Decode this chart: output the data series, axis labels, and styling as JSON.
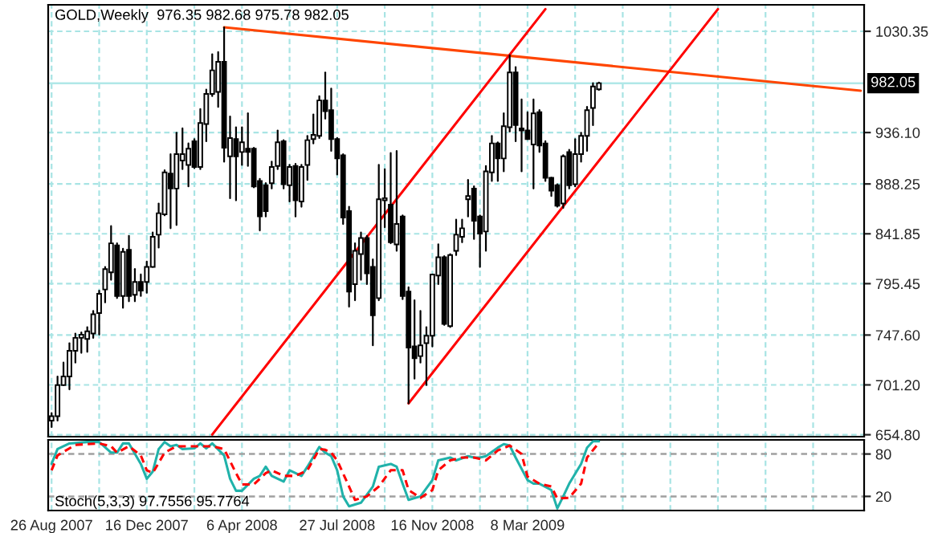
{
  "chart_data": [
    {
      "type": "candlestick",
      "title": "GOLD,Weekly  976.35 982.68 975.78 982.05",
      "x": [
        "2007-08-26",
        "2007-09-02",
        "2007-09-09",
        "2007-09-16",
        "2007-09-23",
        "2007-09-30",
        "2007-10-07",
        "2007-10-14",
        "2007-10-21",
        "2007-10-28",
        "2007-11-04",
        "2007-11-11",
        "2007-11-18",
        "2007-11-25",
        "2007-12-02",
        "2007-12-09",
        "2007-12-16",
        "2007-12-23",
        "2007-12-30",
        "2008-01-06",
        "2008-01-13",
        "2008-01-20",
        "2008-01-27",
        "2008-02-03",
        "2008-02-10",
        "2008-02-17",
        "2008-02-24",
        "2008-03-02",
        "2008-03-09",
        "2008-03-16",
        "2008-03-23",
        "2008-03-30",
        "2008-04-06",
        "2008-04-13",
        "2008-04-20",
        "2008-04-27",
        "2008-05-04",
        "2008-05-11",
        "2008-05-18",
        "2008-05-25",
        "2008-06-01",
        "2008-06-08",
        "2008-06-15",
        "2008-06-22",
        "2008-06-29",
        "2008-07-06",
        "2008-07-13",
        "2008-07-20",
        "2008-07-27",
        "2008-08-03",
        "2008-08-10",
        "2008-08-17",
        "2008-08-24",
        "2008-08-31",
        "2008-09-07",
        "2008-09-14",
        "2008-09-21",
        "2008-09-28",
        "2008-10-05",
        "2008-10-12",
        "2008-10-19",
        "2008-10-26",
        "2008-11-02",
        "2008-11-09",
        "2008-11-16",
        "2008-11-23",
        "2008-11-30",
        "2008-12-07",
        "2008-12-14",
        "2008-12-21",
        "2008-12-28",
        "2009-01-04",
        "2009-01-11",
        "2009-01-18",
        "2009-01-25",
        "2009-02-01",
        "2009-02-08",
        "2009-02-15",
        "2009-02-22",
        "2009-03-01",
        "2009-03-08",
        "2009-03-15",
        "2009-03-22",
        "2009-03-29",
        "2009-04-05",
        "2009-04-12",
        "2009-04-19",
        "2009-04-26",
        "2009-05-03",
        "2009-05-10",
        "2009-05-17",
        "2009-05-24",
        "2009-05-31"
      ],
      "ohlc": [
        [
          668,
          675,
          662,
          672
        ],
        [
          672,
          709,
          668,
          701
        ],
        [
          701,
          722,
          701,
          709
        ],
        [
          709,
          740,
          697,
          733
        ],
        [
          733,
          749,
          722,
          745
        ],
        [
          745,
          750,
          731,
          748
        ],
        [
          744,
          755,
          732,
          751
        ],
        [
          749,
          770,
          745,
          767
        ],
        [
          768,
          789,
          748,
          786
        ],
        [
          790,
          811,
          778,
          809
        ],
        [
          806,
          849,
          799,
          833
        ],
        [
          831,
          833,
          782,
          784
        ],
        [
          784,
          828,
          773,
          825
        ],
        [
          827,
          840,
          779,
          784
        ],
        [
          785,
          809,
          779,
          797
        ],
        [
          797,
          804,
          784,
          789
        ],
        [
          797,
          816,
          787,
          811
        ],
        [
          811,
          843,
          811,
          839
        ],
        [
          841,
          870,
          829,
          861
        ],
        [
          860,
          901,
          859,
          899
        ],
        [
          898,
          916,
          847,
          884
        ],
        [
          884,
          936,
          850,
          916
        ],
        [
          910,
          940,
          902,
          916
        ],
        [
          906,
          926,
          886,
          921
        ],
        [
          928,
          930,
          903,
          904
        ],
        [
          904,
          958,
          902,
          945
        ],
        [
          944,
          976,
          928,
          972
        ],
        [
          972,
          1009,
          970,
          994
        ],
        [
          974,
          1011,
          960,
          1002
        ],
        [
          1002,
          1034,
          909,
          922
        ],
        [
          914,
          951,
          875,
          931
        ],
        [
          930,
          941,
          873,
          914
        ],
        [
          918,
          941,
          906,
          927
        ],
        [
          921,
          954,
          905,
          918
        ],
        [
          921,
          922,
          885,
          886
        ],
        [
          891,
          893,
          845,
          858
        ],
        [
          887,
          889,
          858,
          863
        ],
        [
          889,
          909,
          884,
          904
        ],
        [
          905,
          938,
          902,
          927
        ],
        [
          928,
          929,
          884,
          888
        ],
        [
          887,
          906,
          872,
          904
        ],
        [
          905,
          907,
          858,
          873
        ],
        [
          872,
          906,
          867,
          904
        ],
        [
          906,
          933,
          892,
          929
        ],
        [
          930,
          953,
          926,
          934
        ],
        [
          933,
          970,
          931,
          966
        ],
        [
          966,
          992,
          949,
          956
        ],
        [
          957,
          977,
          919,
          930
        ],
        [
          930,
          931,
          897,
          912
        ],
        [
          915,
          916,
          851,
          857
        ],
        [
          863,
          867,
          774,
          788
        ],
        [
          795,
          833,
          780,
          826
        ],
        [
          823,
          843,
          799,
          838
        ],
        [
          838,
          840,
          795,
          805
        ],
        [
          811,
          818,
          738,
          766
        ],
        [
          782,
          906,
          780,
          874
        ],
        [
          873,
          902,
          848,
          875
        ],
        [
          869,
          917,
          833,
          834
        ],
        [
          832,
          919,
          826,
          851
        ],
        [
          858,
          859,
          781,
          784
        ],
        [
          788,
          792,
          684,
          736
        ],
        [
          737,
          780,
          707,
          726
        ],
        [
          728,
          770,
          722,
          738
        ],
        [
          740,
          755,
          701,
          747
        ],
        [
          747,
          804,
          737,
          804
        ],
        [
          803,
          832,
          795,
          820
        ],
        [
          820,
          821,
          757,
          758
        ],
        [
          756,
          823,
          755,
          822
        ],
        [
          826,
          855,
          822,
          841
        ],
        [
          839,
          855,
          834,
          847
        ],
        [
          874,
          892,
          858,
          877
        ],
        [
          884,
          886,
          837,
          854
        ],
        [
          858,
          859,
          811,
          842
        ],
        [
          844,
          905,
          826,
          900
        ],
        [
          899,
          933,
          891,
          926
        ],
        [
          926,
          927,
          891,
          912
        ],
        [
          912,
          954,
          900,
          942
        ],
        [
          941,
          1008,
          937,
          992
        ],
        [
          992,
          997,
          928,
          943
        ],
        [
          940,
          967,
          900,
          938
        ],
        [
          938,
          955,
          930,
          930
        ],
        [
          925,
          967,
          884,
          954
        ],
        [
          955,
          957,
          918,
          924
        ],
        [
          926,
          928,
          891,
          894
        ],
        [
          894,
          894,
          877,
          882
        ],
        [
          887,
          888,
          867,
          868
        ],
        [
          870,
          915,
          866,
          914
        ],
        [
          918,
          920,
          884,
          887
        ],
        [
          888,
          930,
          886,
          916
        ],
        [
          916,
          936,
          909,
          933
        ],
        [
          933,
          960,
          919,
          957
        ],
        [
          959,
          982,
          943,
          979
        ],
        [
          976.35,
          982.68,
          975.78,
          982.05
        ]
      ],
      "series": [
        {
          "type": "line",
          "color": "#ff4500",
          "x": [
            "2008-03-16",
            "2010-04-04"
          ],
          "values": [
            1034,
            975
          ]
        },
        {
          "type": "line",
          "color": "#ff0000",
          "x": [
            "2008-03-02",
            "2009-03-29"
          ],
          "values": [
            655,
            1051
          ]
        },
        {
          "type": "line",
          "color": "#ff0000",
          "x": [
            "2008-10-19",
            "2009-10-18"
          ],
          "values": [
            684,
            1051
          ]
        }
      ],
      "xlim": [
        "2007-08-22",
        "2010-04-08"
      ],
      "xticks": [
        {
          "value": "2007-08-26",
          "label": null
        },
        {
          "value": "2007-10-21",
          "label": null
        },
        {
          "value": "2007-12-16",
          "label": null
        },
        {
          "value": "2008-02-10",
          "label": null
        },
        {
          "value": "2008-04-06",
          "label": null
        },
        {
          "value": "2008-06-01",
          "label": null
        },
        {
          "value": "2008-07-27",
          "label": null
        },
        {
          "value": "2008-09-21",
          "label": null
        },
        {
          "value": "2008-11-16",
          "label": null
        },
        {
          "value": "2009-01-11",
          "label": null
        },
        {
          "value": "2009-03-08",
          "label": null
        },
        {
          "value": "2009-05-03",
          "label": null
        },
        {
          "value": "2009-06-28",
          "label": null
        },
        {
          "value": "2009-08-23",
          "label": null
        },
        {
          "value": "2009-10-18",
          "label": null
        },
        {
          "value": "2009-12-13",
          "label": null
        },
        {
          "value": "2010-02-07",
          "label": null
        }
      ],
      "ylim": [
        653,
        1055
      ],
      "yticks": [
        {
          "value": 654.8,
          "label": "654.80"
        },
        {
          "value": 701.2,
          "label": "701.20"
        },
        {
          "value": 747.6,
          "label": "747.60"
        },
        {
          "value": 795.45,
          "label": "795.45"
        },
        {
          "value": 841.85,
          "label": "841.85"
        },
        {
          "value": 888.25,
          "label": "888.25"
        },
        {
          "value": 936.1,
          "label": "936.10"
        },
        {
          "value": 1030.35,
          "label": "1030.35"
        }
      ],
      "ref_lines": [
        {
          "axis": "y",
          "value": 982.05,
          "label": "982.05",
          "color": "#b0e8e8",
          "line_style": "solid"
        }
      ],
      "grid": true,
      "tick_labels": "y"
    },
    {
      "type": "line",
      "title": "Stoch(5,3,3) 97.7556 95.7764",
      "series": [
        {
          "color": "#20b2aa",
          "line_style": "solid",
          "x": [
            "2007-08-26",
            "2007-09-02",
            "2007-09-16",
            "2007-10-07",
            "2007-10-21",
            "2007-11-04",
            "2007-11-11",
            "2007-11-18",
            "2007-11-25",
            "2007-12-09",
            "2007-12-16",
            "2007-12-23",
            "2007-12-30",
            "2008-01-06",
            "2008-01-13",
            "2008-01-20",
            "2008-01-27",
            "2008-02-10",
            "2008-02-17",
            "2008-02-24",
            "2008-03-02",
            "2008-03-16",
            "2008-03-23",
            "2008-03-30",
            "2008-04-06",
            "2008-04-20",
            "2008-04-27",
            "2008-05-04",
            "2008-05-11",
            "2008-05-25",
            "2008-06-01",
            "2008-06-15",
            "2008-06-22",
            "2008-07-06",
            "2008-07-13",
            "2008-07-20",
            "2008-07-27",
            "2008-08-03",
            "2008-08-10",
            "2008-08-24",
            "2008-09-07",
            "2008-09-14",
            "2008-09-28",
            "2008-10-05",
            "2008-10-12",
            "2008-10-19",
            "2008-11-02",
            "2008-11-16",
            "2008-11-23",
            "2008-12-07",
            "2008-12-14",
            "2008-12-28",
            "2009-01-04",
            "2009-01-11",
            "2009-01-18",
            "2009-02-01",
            "2009-02-08",
            "2009-02-15",
            "2009-02-22",
            "2009-03-08",
            "2009-03-15",
            "2009-03-22",
            "2009-04-05",
            "2009-04-12",
            "2009-04-19",
            "2009-04-26",
            "2009-05-10",
            "2009-05-17",
            "2009-05-24",
            "2009-05-31"
          ],
          "values": [
            66,
            87,
            95,
            97,
            97,
            82,
            82,
            95,
            95,
            66,
            45,
            55,
            87,
            97,
            91,
            93,
            87,
            88,
            95,
            88,
            95,
            78,
            45,
            28,
            28,
            45,
            49,
            62,
            49,
            41,
            57,
            49,
            62,
            90,
            82,
            77,
            57,
            20,
            6,
            11,
            34,
            62,
            66,
            62,
            38,
            15,
            20,
            43,
            71,
            75,
            71,
            77,
            75,
            75,
            77,
            89,
            94,
            92,
            75,
            43,
            38,
            38,
            29,
            3,
            20,
            38,
            66,
            89,
            98,
            98
          ]
        },
        {
          "color": "#ff0000",
          "line_style": "dashed",
          "x": [
            "2007-08-26",
            "2007-09-02",
            "2007-09-23",
            "2007-10-21",
            "2007-11-04",
            "2007-11-11",
            "2007-11-25",
            "2007-12-09",
            "2007-12-16",
            "2007-12-23",
            "2008-01-06",
            "2008-01-20",
            "2008-02-03",
            "2008-03-02",
            "2008-03-16",
            "2008-03-30",
            "2008-04-06",
            "2008-04-20",
            "2008-05-04",
            "2008-05-11",
            "2008-05-25",
            "2008-06-08",
            "2008-06-22",
            "2008-07-06",
            "2008-07-13",
            "2008-07-20",
            "2008-07-27",
            "2008-08-10",
            "2008-08-17",
            "2008-08-31",
            "2008-09-14",
            "2008-09-28",
            "2008-10-12",
            "2008-10-19",
            "2008-11-02",
            "2008-11-16",
            "2008-11-23",
            "2008-12-07",
            "2008-12-21",
            "2009-01-04",
            "2009-01-18",
            "2009-02-01",
            "2009-02-15",
            "2009-03-01",
            "2009-03-08",
            "2009-03-22",
            "2009-04-05",
            "2009-04-12",
            "2009-04-26",
            "2009-05-10",
            "2009-05-17",
            "2009-05-31"
          ],
          "values": [
            57,
            78,
            93,
            95,
            91,
            82,
            91,
            78,
            57,
            53,
            82,
            91,
            91,
            91,
            87,
            53,
            37,
            37,
            53,
            57,
            49,
            49,
            57,
            87,
            86,
            82,
            71,
            34,
            15,
            20,
            34,
            57,
            57,
            29,
            18,
            29,
            57,
            71,
            75,
            75,
            71,
            85,
            92,
            80,
            48,
            38,
            34,
            17,
            18,
            38,
            75,
            96
          ]
        }
      ],
      "xlim": [
        "2007-08-22",
        "2010-04-08"
      ],
      "xticks": [
        {
          "value": "2007-08-26",
          "label": "26 Aug 2007"
        },
        {
          "value": "2007-10-21",
          "label": null
        },
        {
          "value": "2007-12-16",
          "label": "16 Dec 2007"
        },
        {
          "value": "2008-02-10",
          "label": null
        },
        {
          "value": "2008-04-06",
          "label": "6 Apr 2008"
        },
        {
          "value": "2008-06-01",
          "label": null
        },
        {
          "value": "2008-07-27",
          "label": "27 Jul 2008"
        },
        {
          "value": "2008-09-21",
          "label": null
        },
        {
          "value": "2008-11-16",
          "label": "16 Nov 2008"
        },
        {
          "value": "2009-01-11",
          "label": null
        },
        {
          "value": "2009-03-08",
          "label": "8 Mar 2009"
        },
        {
          "value": "2009-05-03",
          "label": null
        },
        {
          "value": "2009-06-28",
          "label": null
        },
        {
          "value": "2009-08-23",
          "label": null
        },
        {
          "value": "2009-10-18",
          "label": null
        },
        {
          "value": "2009-12-13",
          "label": null
        },
        {
          "value": "2010-02-07",
          "label": null
        }
      ],
      "ylim": [
        0,
        100
      ],
      "yticks": [
        20,
        80
      ],
      "ref_lines": [
        {
          "axis": "y",
          "value": 20,
          "color": "#a0a0a0",
          "line_style": "dashed"
        },
        {
          "axis": "y",
          "value": 80,
          "color": "#a0a0a0",
          "line_style": "dashed"
        }
      ],
      "grid": "x"
    }
  ]
}
